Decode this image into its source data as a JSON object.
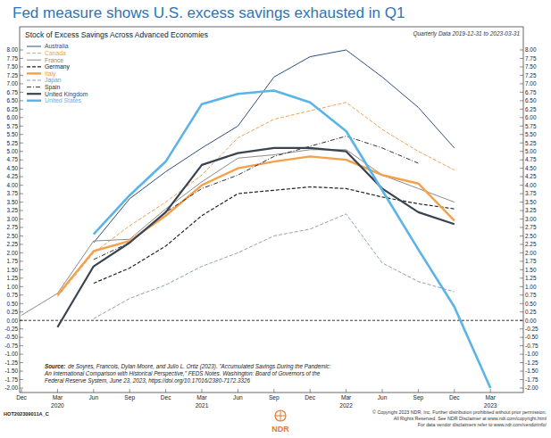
{
  "chart_data": {
    "type": "line",
    "title": "Fed measure shows U.S. excess savings exhausted in Q1",
    "chart_title": "Stock of Excess Savings Across Advanced Economies",
    "subtitle": "Quarterly Data 2019-12-31 to 2023-03-31",
    "categories": [
      "Dec",
      "Mar 2020",
      "Jun",
      "Sep",
      "Dec",
      "Mar 2021",
      "Jun",
      "Sep",
      "Dec",
      "Mar 2022",
      "Jun",
      "Sep",
      "Dec",
      "Mar 2023"
    ],
    "series": [
      {
        "name": "Australia",
        "color": "#2c4f80",
        "line_style": "solid",
        "values": [
          null,
          null,
          2.3,
          3.6,
          4.4,
          5.1,
          5.75,
          7.2,
          7.8,
          8.0,
          7.2,
          6.3,
          5.1,
          null
        ]
      },
      {
        "name": "Canada",
        "color": "#f0a050",
        "line_style": "dashed",
        "values": [
          null,
          0.7,
          2.0,
          2.8,
          3.5,
          4.3,
          5.4,
          5.95,
          6.2,
          6.45,
          5.65,
          5.0,
          4.45,
          null
        ]
      },
      {
        "name": "France",
        "color": "#8c8c8c",
        "line_style": "solid",
        "values": [
          0.15,
          0.8,
          2.35,
          2.4,
          3.3,
          4.1,
          4.8,
          4.9,
          5.05,
          5.05,
          4.3,
          3.9,
          3.5,
          null
        ]
      },
      {
        "name": "Germany",
        "color": "#222222",
        "line_style": "dashed",
        "values": [
          null,
          null,
          1.1,
          1.55,
          2.2,
          3.1,
          3.75,
          3.85,
          3.95,
          3.9,
          3.65,
          3.45,
          3.3,
          null
        ]
      },
      {
        "name": "Italy",
        "color": "#f5a04a",
        "line_style": "solid",
        "values": [
          null,
          0.75,
          2.05,
          2.35,
          3.1,
          4.0,
          4.5,
          4.7,
          4.85,
          4.75,
          4.3,
          4.05,
          2.95,
          null
        ]
      },
      {
        "name": "Japan",
        "color": "#7f96aa",
        "line_style": "dashed",
        "values": [
          null,
          null,
          0.05,
          0.65,
          1.05,
          1.6,
          2.0,
          2.5,
          2.7,
          3.15,
          1.7,
          1.15,
          0.85,
          null
        ]
      },
      {
        "name": "Spain",
        "color": "#333333",
        "line_style": "dashdot",
        "values": [
          null,
          null,
          1.8,
          2.3,
          3.2,
          3.9,
          4.3,
          4.85,
          5.15,
          5.45,
          5.1,
          4.65,
          null,
          null
        ]
      },
      {
        "name": "United Kingdom",
        "color": "#3a4450",
        "line_style": "solid",
        "values": [
          null,
          -0.2,
          1.6,
          2.3,
          3.2,
          4.6,
          4.95,
          5.1,
          5.1,
          5.0,
          3.9,
          3.2,
          2.85,
          null
        ]
      },
      {
        "name": "United States",
        "color": "#5ab4e8",
        "line_style": "solid",
        "values": [
          null,
          null,
          2.55,
          3.7,
          4.7,
          6.4,
          6.7,
          6.8,
          6.45,
          5.6,
          3.85,
          2.1,
          0.4,
          -2.0
        ]
      }
    ],
    "ylim": [
      -2,
      8
    ],
    "yticks": [
      {
        "value": 8,
        "label": "8.00"
      },
      {
        "value": 7.75,
        "label": "7.75"
      },
      {
        "value": 7.5,
        "label": "7.50"
      },
      {
        "value": 7.25,
        "label": "7.25"
      },
      {
        "value": 7,
        "label": "7.00"
      },
      {
        "value": 6.75,
        "label": "6.75"
      },
      {
        "value": 6.5,
        "label": "6.50"
      },
      {
        "value": 6.25,
        "label": "6.25"
      },
      {
        "value": 6,
        "label": "6.00"
      },
      {
        "value": 5.75,
        "label": "5.75"
      },
      {
        "value": 5.5,
        "label": "5.50"
      },
      {
        "value": 5.25,
        "label": "5.25"
      },
      {
        "value": 5,
        "label": "5.00"
      },
      {
        "value": 4.75,
        "label": "4.75"
      },
      {
        "value": 4.5,
        "label": "4.50"
      },
      {
        "value": 4.25,
        "label": "4.25"
      },
      {
        "value": 4,
        "label": "4.00"
      },
      {
        "value": 3.75,
        "label": "3.75"
      },
      {
        "value": 3.5,
        "label": "3.50"
      },
      {
        "value": 3.25,
        "label": "3.25"
      },
      {
        "value": 3,
        "label": "3.00"
      },
      {
        "value": 2.75,
        "label": "2.75"
      },
      {
        "value": 2.5,
        "label": "2.50"
      },
      {
        "value": 2.25,
        "label": "2.25"
      },
      {
        "value": 2,
        "label": "2.00"
      },
      {
        "value": 1.75,
        "label": "1.75"
      },
      {
        "value": 1.5,
        "label": "1.50"
      },
      {
        "value": 1.25,
        "label": "1.25"
      },
      {
        "value": 1,
        "label": "1.00"
      },
      {
        "value": 0.75,
        "label": "0.75"
      },
      {
        "value": 0.5,
        "label": "0.50"
      },
      {
        "value": 0.25,
        "label": "0.25"
      },
      {
        "value": 0,
        "label": "0.00"
      },
      {
        "value": -0.25,
        "label": "-0.25"
      },
      {
        "value": -0.5,
        "label": "-0.50"
      },
      {
        "value": -0.75,
        "label": "-0.75"
      },
      {
        "value": -1,
        "label": "-1.00"
      },
      {
        "value": -1.25,
        "label": "-1.25"
      },
      {
        "value": -1.5,
        "label": "-1.50"
      },
      {
        "value": -1.75,
        "label": "-1.75"
      },
      {
        "value": -2,
        "label": "-2.00"
      }
    ],
    "grid": false,
    "legend": "top-left",
    "source_label": "Source:",
    "source_lines": [
      "de Soyres, Francois, Dylan Moore, and Julio L. Ortiz (2023). \"Accumulated Savings During the Pandemic:",
      "An International Comparison with Historical Perspective,\" FEDS Notes. Washington: Board of Governors of the",
      "Federal Reserve System, June 23, 2023, https://doi.org/10.17016/2380-7172.3326"
    ],
    "footer_code": "HOT202309011A_C",
    "logo_text": "NDR",
    "copyright_lines": [
      "© Copyright 2023 NDR, Inc. Further distribution prohibited without prior permission.",
      "All Rights Reserved. See NDR Disclaimer at www.ndr.com/copyright.html",
      "For data vendor disclaimers refer to www.ndr.com/vendorinfo/"
    ]
  }
}
